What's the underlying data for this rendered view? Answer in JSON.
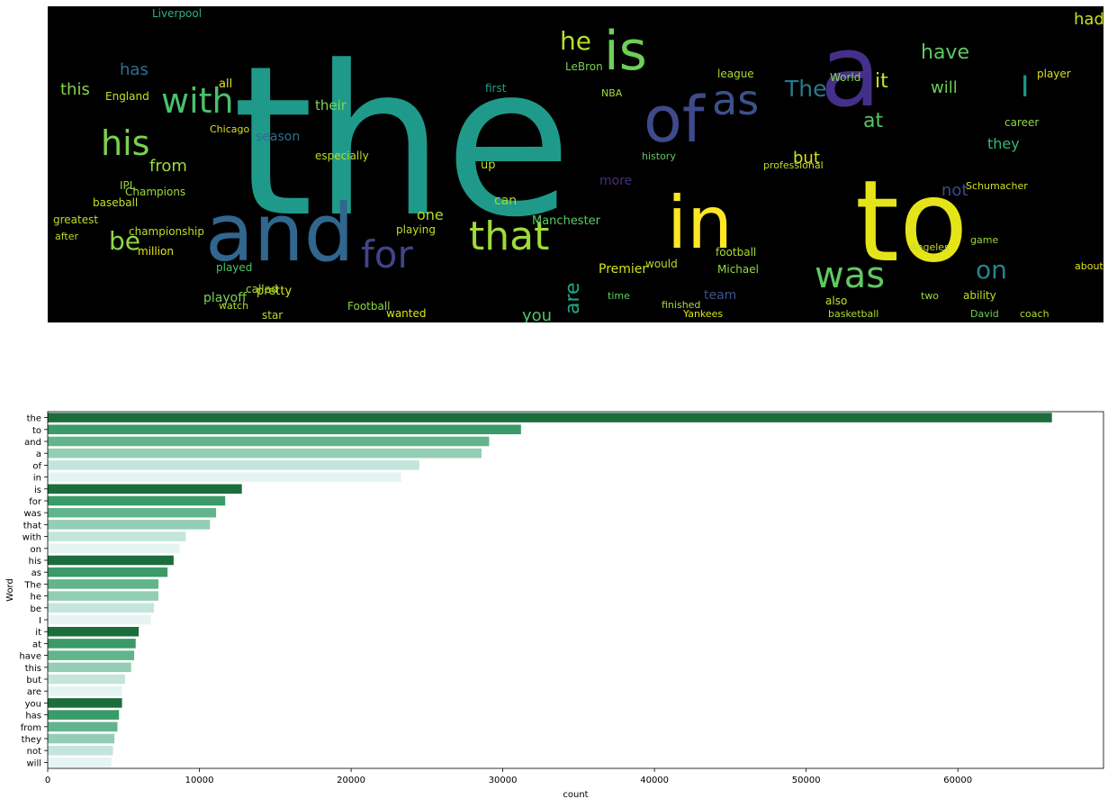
{
  "wordcloud": {
    "background": "#000000",
    "words": [
      {
        "text": "the",
        "color": "#1f9a8a"
      },
      {
        "text": "a",
        "color": "#44308a"
      },
      {
        "text": "to",
        "color": "#e5e419"
      },
      {
        "text": "and",
        "color": "#31668e"
      },
      {
        "text": "in",
        "color": "#fde725"
      },
      {
        "text": "is",
        "color": "#6ece58"
      },
      {
        "text": "of",
        "color": "#3f4a8a"
      },
      {
        "text": "as",
        "color": "#3b528b"
      },
      {
        "text": "with",
        "color": "#4ac16d"
      },
      {
        "text": "his",
        "color": "#7ad151"
      },
      {
        "text": "for",
        "color": "#414487"
      },
      {
        "text": "that",
        "color": "#a0da39"
      },
      {
        "text": "was",
        "color": "#5ec962"
      },
      {
        "text": "The",
        "color": "#2a788e"
      },
      {
        "text": "he",
        "color": "#b5de2b"
      },
      {
        "text": "be",
        "color": "#8fd744"
      },
      {
        "text": "on",
        "color": "#26828e"
      },
      {
        "text": "I",
        "color": "#1f988b"
      },
      {
        "text": "it",
        "color": "#d0e11c"
      },
      {
        "text": "at",
        "color": "#54c568"
      },
      {
        "text": "have",
        "color": "#5ec962"
      },
      {
        "text": "this",
        "color": "#84d44b"
      },
      {
        "text": "but",
        "color": "#d8e219"
      },
      {
        "text": "are",
        "color": "#21a685"
      },
      {
        "text": "you",
        "color": "#52c569"
      },
      {
        "text": "has",
        "color": "#2c728e"
      },
      {
        "text": "from",
        "color": "#9fda3a"
      },
      {
        "text": "they",
        "color": "#35b779"
      },
      {
        "text": "not",
        "color": "#3e4a89"
      },
      {
        "text": "will",
        "color": "#6ccd5a"
      },
      {
        "text": "had",
        "color": "#c8e020"
      },
      {
        "text": "their",
        "color": "#7fd34e"
      },
      {
        "text": "one",
        "color": "#b2dd2d"
      },
      {
        "text": "can",
        "color": "#a2da37"
      },
      {
        "text": "up",
        "color": "#c2df23"
      },
      {
        "text": "all",
        "color": "#e2e418"
      },
      {
        "text": "more",
        "color": "#472f7d"
      },
      {
        "text": "season",
        "color": "#2e6f8e"
      },
      {
        "text": "team",
        "color": "#3a538b"
      },
      {
        "text": "first",
        "color": "#1fa088"
      },
      {
        "text": "Manchester",
        "color": "#5cc863"
      },
      {
        "text": "Football",
        "color": "#8bd646"
      },
      {
        "text": "football",
        "color": "#a8db34"
      },
      {
        "text": "Champions",
        "color": "#9bd93c"
      },
      {
        "text": "championship",
        "color": "#b8de29"
      },
      {
        "text": "playoff",
        "color": "#7cd250"
      },
      {
        "text": "Premier",
        "color": "#d2e21b"
      },
      {
        "text": "LeBron",
        "color": "#77d153"
      },
      {
        "text": "Liverpool",
        "color": "#2db27d"
      },
      {
        "text": "basketball",
        "color": "#aadc32"
      },
      {
        "text": "Schumacher",
        "color": "#cde11d"
      },
      {
        "text": "Angeles",
        "color": "#bddf26"
      },
      {
        "text": "Michael",
        "color": "#95d840"
      },
      {
        "text": "professional",
        "color": "#c0df25"
      },
      {
        "text": "Yankees",
        "color": "#dde318"
      },
      {
        "text": "coach",
        "color": "#b0dd2f"
      },
      {
        "text": "David",
        "color": "#6ece58"
      },
      {
        "text": "World",
        "color": "#86d549"
      },
      {
        "text": "NBA",
        "color": "#a5db36"
      },
      {
        "text": "England",
        "color": "#cae11f"
      },
      {
        "text": "IPL",
        "color": "#93d741"
      },
      {
        "text": "greatest",
        "color": "#bade28"
      },
      {
        "text": "million",
        "color": "#e7e419"
      },
      {
        "text": "game",
        "color": "#9ad93c"
      },
      {
        "text": "player",
        "color": "#d5e21a"
      },
      {
        "text": "league",
        "color": "#a8db34"
      },
      {
        "text": "would",
        "color": "#b5de2b"
      },
      {
        "text": "time",
        "color": "#63cb5f"
      },
      {
        "text": "career",
        "color": "#8ed645"
      },
      {
        "text": "played",
        "color": "#4ec36b"
      },
      {
        "text": "after",
        "color": "#bade28"
      },
      {
        "text": "pretty",
        "color": "#d0e11c"
      },
      {
        "text": "wanted",
        "color": "#dde318"
      },
      {
        "text": "called",
        "color": "#a0da39"
      },
      {
        "text": "playing",
        "color": "#c2df23"
      },
      {
        "text": "history",
        "color": "#5ec962"
      },
      {
        "text": "baseball",
        "color": "#c5e021"
      },
      {
        "text": "especially",
        "color": "#b8de29"
      },
      {
        "text": "Chicago",
        "color": "#d8e219"
      },
      {
        "text": "watch",
        "color": "#b2dd2d"
      },
      {
        "text": "finished",
        "color": "#a5db36"
      },
      {
        "text": "also",
        "color": "#c8e020"
      },
      {
        "text": "about",
        "color": "#e2e418"
      },
      {
        "text": "two",
        "color": "#9fda3a"
      },
      {
        "text": "star",
        "color": "#b5de2b"
      },
      {
        "text": "ability",
        "color": "#c2df23"
      }
    ]
  },
  "chart_data": {
    "type": "bar",
    "orientation": "horizontal",
    "categories": [
      "the",
      "to",
      "and",
      "a",
      "of",
      "in",
      "is",
      "for",
      "was",
      "that",
      "with",
      "on",
      "his",
      "as",
      "The",
      "he",
      "be",
      "I",
      "it",
      "at",
      "have",
      "this",
      "but",
      "are",
      "you",
      "has",
      "from",
      "they",
      "not",
      "will"
    ],
    "values": [
      66200,
      31200,
      29100,
      28600,
      24500,
      23300,
      12800,
      11700,
      11100,
      10700,
      9100,
      8700,
      8300,
      7900,
      7300,
      7300,
      7000,
      6800,
      6000,
      5800,
      5700,
      5500,
      5100,
      4900,
      4900,
      4700,
      4600,
      4400,
      4300,
      4200
    ],
    "palette": [
      "#1b6e3c",
      "#3a9a68",
      "#62b48c",
      "#93cdb6",
      "#c4e5dc",
      "#e5f4f1"
    ],
    "xlabel": "count",
    "ylabel": "Word",
    "xlim": [
      0,
      69600
    ],
    "xticks": [
      0,
      10000,
      20000,
      30000,
      40000,
      50000,
      60000
    ],
    "grid": false
  }
}
